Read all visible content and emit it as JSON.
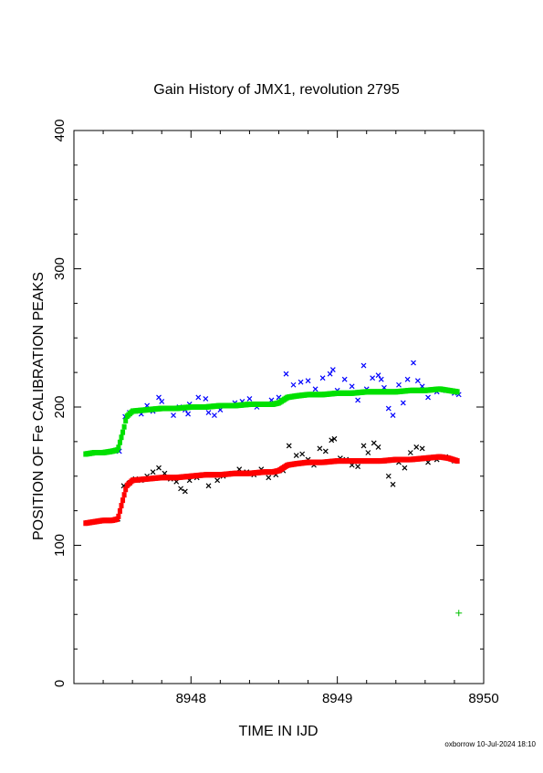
{
  "chart_data": {
    "type": "scatter",
    "title": "Gain History of JMX1, revolution 2795",
    "xlabel": "TIME IN IJD",
    "ylabel": "POSITION OF Fe CALIBRATION PEAKS",
    "xlim": [
      8947.2,
      8950.0
    ],
    "ylim": [
      0,
      400
    ],
    "x_ticks": [
      {
        "value": 8948,
        "label": "8948"
      },
      {
        "value": 8949,
        "label": "8949"
      },
      {
        "value": 8950,
        "label": "8950"
      }
    ],
    "y_ticks": [
      {
        "value": 0,
        "label": "0"
      },
      {
        "value": 100,
        "label": "100"
      },
      {
        "value": 200,
        "label": "200"
      },
      {
        "value": 300,
        "label": "300"
      },
      {
        "value": 400,
        "label": "400"
      }
    ],
    "grid": false,
    "legend": "none",
    "footer": "oxborrow 10-Jul-2024 18:10",
    "series": [
      {
        "marker": "x",
        "color": "#0000ff",
        "points": [
          [
            8947.51,
            168
          ],
          [
            8947.55,
            193
          ],
          [
            8947.58,
            196
          ],
          [
            8947.62,
            197
          ],
          [
            8947.66,
            195
          ],
          [
            8947.7,
            201
          ],
          [
            8947.74,
            197
          ],
          [
            8947.78,
            207
          ],
          [
            8947.8,
            204
          ],
          [
            8947.84,
            199
          ],
          [
            8947.88,
            194
          ],
          [
            8947.92,
            200
          ],
          [
            8947.96,
            198
          ],
          [
            8947.98,
            195
          ],
          [
            8947.99,
            202
          ],
          [
            8948.05,
            207
          ],
          [
            8948.1,
            206
          ],
          [
            8948.12,
            196
          ],
          [
            8948.16,
            194
          ],
          [
            8948.2,
            198
          ],
          [
            8948.25,
            201
          ],
          [
            8948.3,
            203
          ],
          [
            8948.35,
            204
          ],
          [
            8948.4,
            206
          ],
          [
            8948.45,
            200
          ],
          [
            8948.5,
            202
          ],
          [
            8948.55,
            205
          ],
          [
            8948.6,
            207
          ],
          [
            8948.65,
            224
          ],
          [
            8948.7,
            216
          ],
          [
            8948.75,
            218
          ],
          [
            8948.8,
            219
          ],
          [
            8948.85,
            213
          ],
          [
            8948.9,
            221
          ],
          [
            8948.95,
            224
          ],
          [
            8948.97,
            227
          ],
          [
            8949.0,
            212
          ],
          [
            8949.05,
            220
          ],
          [
            8949.1,
            215
          ],
          [
            8949.14,
            205
          ],
          [
            8949.18,
            230
          ],
          [
            8949.2,
            213
          ],
          [
            8949.24,
            221
          ],
          [
            8949.28,
            223
          ],
          [
            8949.3,
            220
          ],
          [
            8949.32,
            214
          ],
          [
            8949.35,
            199
          ],
          [
            8949.38,
            194
          ],
          [
            8949.42,
            216
          ],
          [
            8949.45,
            203
          ],
          [
            8949.48,
            220
          ],
          [
            8949.52,
            232
          ],
          [
            8949.55,
            219
          ],
          [
            8949.58,
            215
          ],
          [
            8949.62,
            207
          ],
          [
            8949.68,
            211
          ],
          [
            8949.74,
            212
          ],
          [
            8949.8,
            210
          ],
          [
            8949.83,
            209
          ]
        ]
      },
      {
        "marker": "x",
        "color": "#000000",
        "points": [
          [
            8947.5,
            119
          ],
          [
            8947.54,
            143
          ],
          [
            8947.58,
            145
          ],
          [
            8947.62,
            148
          ],
          [
            8947.66,
            147
          ],
          [
            8947.7,
            150
          ],
          [
            8947.74,
            153
          ],
          [
            8947.78,
            156
          ],
          [
            8947.82,
            152
          ],
          [
            8947.86,
            148
          ],
          [
            8947.9,
            146
          ],
          [
            8947.93,
            141
          ],
          [
            8947.96,
            139
          ],
          [
            8947.99,
            147
          ],
          [
            8948.04,
            149
          ],
          [
            8948.08,
            151
          ],
          [
            8948.12,
            143
          ],
          [
            8948.18,
            147
          ],
          [
            8948.22,
            150
          ],
          [
            8948.28,
            152
          ],
          [
            8948.33,
            155
          ],
          [
            8948.38,
            153
          ],
          [
            8948.43,
            151
          ],
          [
            8948.48,
            155
          ],
          [
            8948.53,
            149
          ],
          [
            8948.58,
            151
          ],
          [
            8948.63,
            154
          ],
          [
            8948.67,
            172
          ],
          [
            8948.72,
            165
          ],
          [
            8948.76,
            166
          ],
          [
            8948.8,
            162
          ],
          [
            8948.84,
            158
          ],
          [
            8948.88,
            170
          ],
          [
            8948.92,
            168
          ],
          [
            8948.96,
            176
          ],
          [
            8948.98,
            177
          ],
          [
            8949.02,
            163
          ],
          [
            8949.06,
            162
          ],
          [
            8949.1,
            158
          ],
          [
            8949.14,
            157
          ],
          [
            8949.18,
            172
          ],
          [
            8949.21,
            167
          ],
          [
            8949.25,
            174
          ],
          [
            8949.28,
            171
          ],
          [
            8949.32,
            161
          ],
          [
            8949.35,
            150
          ],
          [
            8949.38,
            144
          ],
          [
            8949.42,
            160
          ],
          [
            8949.46,
            156
          ],
          [
            8949.5,
            167
          ],
          [
            8949.54,
            171
          ],
          [
            8949.58,
            170
          ],
          [
            8949.62,
            160
          ],
          [
            8949.68,
            162
          ],
          [
            8949.74,
            164
          ],
          [
            8949.8,
            161
          ]
        ]
      },
      {
        "marker": "dash",
        "color": "#00e000",
        "points": [
          [
            8947.28,
            166
          ],
          [
            8947.34,
            167
          ],
          [
            8947.4,
            167
          ],
          [
            8947.46,
            168
          ],
          [
            8947.5,
            169
          ],
          [
            8947.54,
            184
          ],
          [
            8947.56,
            193
          ],
          [
            8947.6,
            197
          ],
          [
            8947.7,
            198
          ],
          [
            8947.8,
            199
          ],
          [
            8947.9,
            199
          ],
          [
            8948.0,
            200
          ],
          [
            8948.1,
            200
          ],
          [
            8948.2,
            201
          ],
          [
            8948.3,
            201
          ],
          [
            8948.4,
            202
          ],
          [
            8948.5,
            202
          ],
          [
            8948.56,
            202
          ],
          [
            8948.6,
            203
          ],
          [
            8948.66,
            207
          ],
          [
            8948.72,
            208
          ],
          [
            8948.8,
            209
          ],
          [
            8948.9,
            209
          ],
          [
            8949.0,
            210
          ],
          [
            8949.1,
            210
          ],
          [
            8949.2,
            211
          ],
          [
            8949.3,
            211
          ],
          [
            8949.4,
            211
          ],
          [
            8949.5,
            212
          ],
          [
            8949.6,
            212
          ],
          [
            8949.7,
            213
          ],
          [
            8949.76,
            212
          ],
          [
            8949.82,
            211
          ]
        ]
      },
      {
        "marker": "dash",
        "color": "#ff0000",
        "points": [
          [
            8947.28,
            116
          ],
          [
            8947.34,
            117
          ],
          [
            8947.4,
            118
          ],
          [
            8947.46,
            118
          ],
          [
            8947.5,
            119
          ],
          [
            8947.54,
            135
          ],
          [
            8947.56,
            143
          ],
          [
            8947.6,
            147
          ],
          [
            8947.7,
            148
          ],
          [
            8947.8,
            149
          ],
          [
            8947.9,
            149
          ],
          [
            8948.0,
            150
          ],
          [
            8948.1,
            151
          ],
          [
            8948.2,
            151
          ],
          [
            8948.3,
            152
          ],
          [
            8948.4,
            152
          ],
          [
            8948.5,
            153
          ],
          [
            8948.56,
            153
          ],
          [
            8948.6,
            154
          ],
          [
            8948.66,
            158
          ],
          [
            8948.72,
            159
          ],
          [
            8948.8,
            160
          ],
          [
            8948.9,
            160
          ],
          [
            8949.0,
            161
          ],
          [
            8949.1,
            161
          ],
          [
            8949.2,
            161
          ],
          [
            8949.3,
            161
          ],
          [
            8949.4,
            162
          ],
          [
            8949.5,
            162
          ],
          [
            8949.6,
            163
          ],
          [
            8949.7,
            164
          ],
          [
            8949.76,
            163
          ],
          [
            8949.82,
            161
          ]
        ]
      },
      {
        "marker": "plus",
        "color": "#00c000",
        "points": [
          [
            8949.83,
            51
          ]
        ]
      }
    ]
  }
}
